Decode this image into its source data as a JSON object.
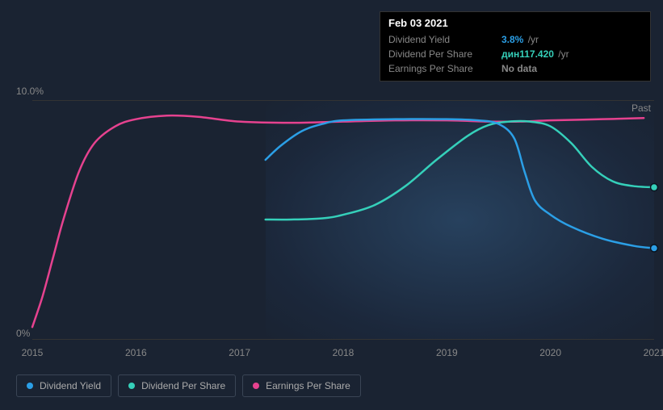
{
  "tooltip": {
    "date": "Feb 03 2021",
    "rows": [
      {
        "label": "Dividend Yield",
        "value": "3.8%",
        "unit": "/yr",
        "color": "#2b9fe6"
      },
      {
        "label": "Dividend Per Share",
        "value": "дин117.420",
        "unit": "/yr",
        "color": "#35d0ba"
      },
      {
        "label": "Earnings Per Share",
        "value": "No data",
        "unit": "",
        "color": "#888888"
      }
    ]
  },
  "chart": {
    "type": "line",
    "background_color": "#1a2332",
    "grid_color": "#333333",
    "text_color": "#888888",
    "past_label": "Past",
    "y_axis": {
      "min": 0,
      "max": 10,
      "ticks": [
        {
          "pos": 0,
          "label": "10.0%"
        },
        {
          "pos": 100,
          "label": "0%"
        }
      ]
    },
    "x_axis": {
      "min": 2015,
      "max": 2021,
      "ticks": [
        {
          "x": 2015,
          "label": "2015"
        },
        {
          "x": 2016,
          "label": "2016"
        },
        {
          "x": 2017,
          "label": "2017"
        },
        {
          "x": 2018,
          "label": "2018"
        },
        {
          "x": 2019,
          "label": "2019"
        },
        {
          "x": 2020,
          "label": "2020"
        },
        {
          "x": 2021,
          "label": "2021"
        }
      ]
    },
    "shaded_region": {
      "x_start": 2017.25,
      "x_end": 2021
    },
    "series": [
      {
        "name": "Earnings Per Share",
        "color": "#e6428f",
        "line_width": 2.5,
        "end_dot": false,
        "points": [
          [
            2015.0,
            0.5
          ],
          [
            2015.1,
            1.8
          ],
          [
            2015.2,
            3.4
          ],
          [
            2015.3,
            5.0
          ],
          [
            2015.45,
            7.0
          ],
          [
            2015.6,
            8.2
          ],
          [
            2015.8,
            8.9
          ],
          [
            2016.0,
            9.2
          ],
          [
            2016.3,
            9.35
          ],
          [
            2016.6,
            9.3
          ],
          [
            2017.0,
            9.1
          ],
          [
            2017.5,
            9.05
          ],
          [
            2018.0,
            9.1
          ],
          [
            2018.5,
            9.15
          ],
          [
            2019.0,
            9.15
          ],
          [
            2019.4,
            9.1
          ],
          [
            2019.7,
            9.1
          ],
          [
            2020.0,
            9.15
          ],
          [
            2020.5,
            9.2
          ],
          [
            2020.9,
            9.25
          ]
        ]
      },
      {
        "name": "Dividend Per Share",
        "color": "#35d0ba",
        "line_width": 2.5,
        "end_dot": true,
        "points": [
          [
            2017.25,
            5.0
          ],
          [
            2017.5,
            5.0
          ],
          [
            2017.8,
            5.05
          ],
          [
            2018.0,
            5.2
          ],
          [
            2018.3,
            5.6
          ],
          [
            2018.6,
            6.4
          ],
          [
            2018.9,
            7.5
          ],
          [
            2019.2,
            8.5
          ],
          [
            2019.4,
            8.95
          ],
          [
            2019.6,
            9.1
          ],
          [
            2019.8,
            9.1
          ],
          [
            2020.0,
            8.9
          ],
          [
            2020.2,
            8.2
          ],
          [
            2020.4,
            7.2
          ],
          [
            2020.6,
            6.6
          ],
          [
            2020.8,
            6.4
          ],
          [
            2021.0,
            6.35
          ]
        ]
      },
      {
        "name": "Dividend Yield",
        "color": "#2b9fe6",
        "line_width": 2.5,
        "end_dot": true,
        "points": [
          [
            2017.25,
            7.5
          ],
          [
            2017.4,
            8.1
          ],
          [
            2017.6,
            8.7
          ],
          [
            2017.8,
            9.0
          ],
          [
            2018.0,
            9.15
          ],
          [
            2018.5,
            9.2
          ],
          [
            2019.0,
            9.2
          ],
          [
            2019.3,
            9.15
          ],
          [
            2019.5,
            9.0
          ],
          [
            2019.65,
            8.4
          ],
          [
            2019.75,
            7.0
          ],
          [
            2019.85,
            5.8
          ],
          [
            2020.0,
            5.2
          ],
          [
            2020.2,
            4.7
          ],
          [
            2020.5,
            4.2
          ],
          [
            2020.8,
            3.9
          ],
          [
            2021.0,
            3.8
          ]
        ]
      }
    ],
    "legend": [
      {
        "label": "Dividend Yield",
        "color": "#2b9fe6"
      },
      {
        "label": "Dividend Per Share",
        "color": "#35d0ba"
      },
      {
        "label": "Earnings Per Share",
        "color": "#e6428f"
      }
    ]
  }
}
